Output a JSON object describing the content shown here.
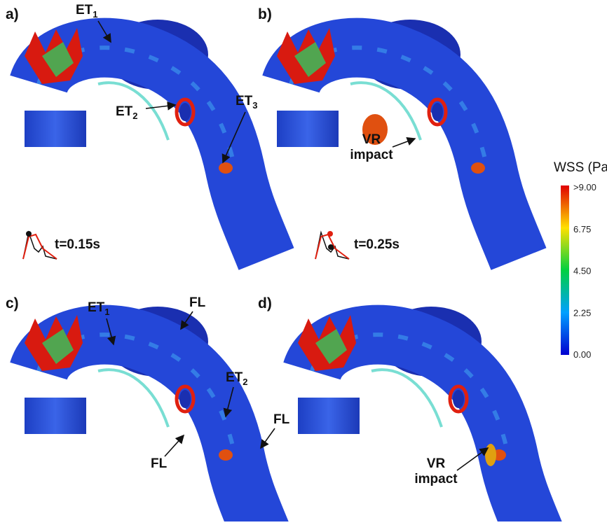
{
  "panels": [
    {
      "label": "a)",
      "time": "t=0.15s",
      "annotations": [
        {
          "text": "ET",
          "sub": "1"
        },
        {
          "text": "ET",
          "sub": "2"
        },
        {
          "text": "ET",
          "sub": "3"
        }
      ]
    },
    {
      "label": "b)",
      "time": "t=0.25s",
      "annotations": [
        {
          "lines": [
            "VR",
            "impact"
          ]
        }
      ]
    },
    {
      "label": "c)",
      "annotations": [
        {
          "text": "ET",
          "sub": "1"
        },
        {
          "text": "FL"
        },
        {
          "text": "ET",
          "sub": "2"
        },
        {
          "text": "FL"
        },
        {
          "text": "FL"
        }
      ]
    },
    {
      "label": "d)",
      "annotations": [
        {
          "lines": [
            "VR",
            "impact"
          ]
        }
      ]
    }
  ],
  "colorbar": {
    "title": "WSS (Pa)",
    "ticks": [
      ">9.00",
      "6.75",
      "4.50",
      "2.25",
      "0.00"
    ]
  }
}
